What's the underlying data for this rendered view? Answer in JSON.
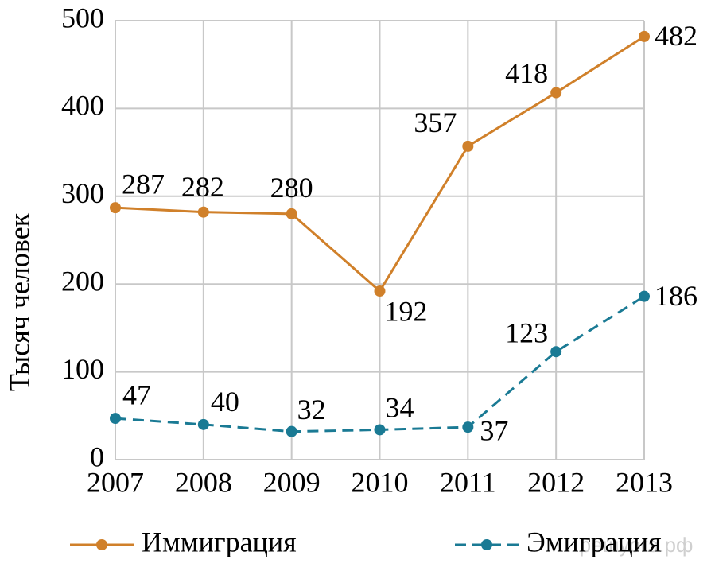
{
  "chart_data": {
    "type": "line",
    "y_label": "Тысяч человек",
    "categories": [
      "2007",
      "2008",
      "2009",
      "2010",
      "2011",
      "2012",
      "2013"
    ],
    "series": [
      {
        "name": "Иммиграция",
        "color": "#d0802a",
        "dash": false,
        "values": [
          287,
          282,
          280,
          192,
          357,
          418,
          482
        ]
      },
      {
        "name": "Эмиграция",
        "color": "#1a7a94",
        "dash": true,
        "values": [
          47,
          40,
          32,
          34,
          37,
          123,
          186
        ]
      }
    ],
    "ylim": [
      0,
      500
    ],
    "yticks": [
      0,
      100,
      200,
      300,
      400,
      500
    ],
    "grid": true,
    "watermark": "решуогэ.рф"
  }
}
